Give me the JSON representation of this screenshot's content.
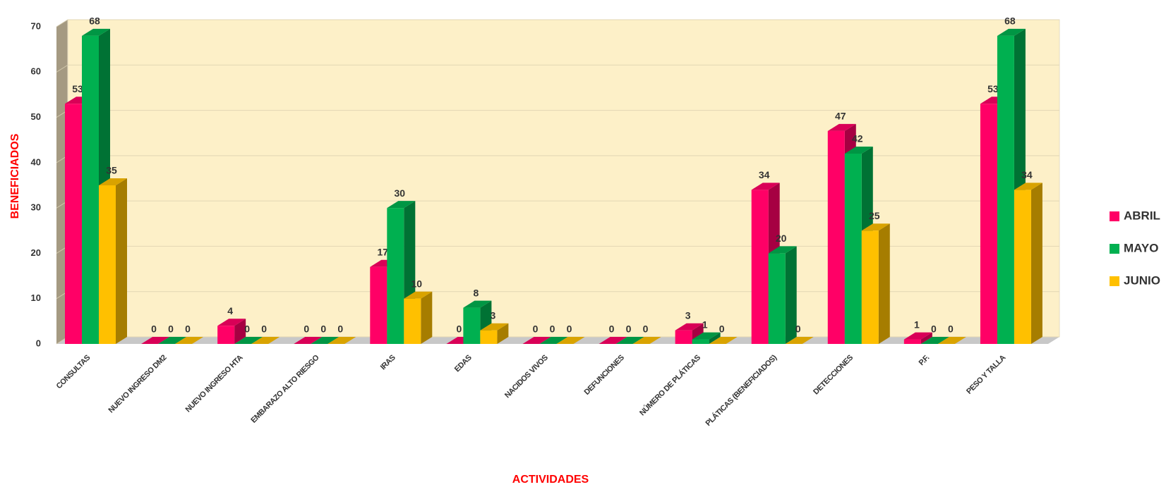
{
  "chart_data": {
    "type": "bar3d",
    "x_label": "ACTIVIDADES",
    "y_label": "BENEFICIADOS",
    "categories": [
      "CONSULTAS",
      "NUEVO INGRESO DM2",
      "NUEVO INGRESO HTA",
      "EMBARAZO ALTO RIESGO",
      "IRAS",
      "EDAS",
      "NACIDOS VIVOS",
      "DEFUNCIONES",
      "NÚMERO DE PLÁTICAS",
      "PLÁTICAS (BENEFICIADOS)",
      "DETECCIONES",
      "P.F.",
      "PESO Y TALLA"
    ],
    "series": [
      {
        "name": "ABRIL",
        "color": "#ff0066",
        "values": [
          53,
          0,
          4,
          0,
          17,
          0,
          0,
          0,
          3,
          34,
          47,
          1,
          53
        ]
      },
      {
        "name": "MAYO",
        "color": "#00b050",
        "values": [
          68,
          0,
          0,
          0,
          30,
          8,
          0,
          0,
          1,
          20,
          42,
          0,
          68
        ]
      },
      {
        "name": "JUNIO",
        "color": "#ffc000",
        "values": [
          35,
          0,
          0,
          0,
          10,
          3,
          0,
          0,
          0,
          0,
          25,
          0,
          34
        ]
      }
    ],
    "ylim": [
      0,
      70
    ],
    "yticks": [
      0,
      10,
      20,
      30,
      40,
      50,
      60,
      70
    ],
    "grid": true,
    "legend": "right"
  }
}
